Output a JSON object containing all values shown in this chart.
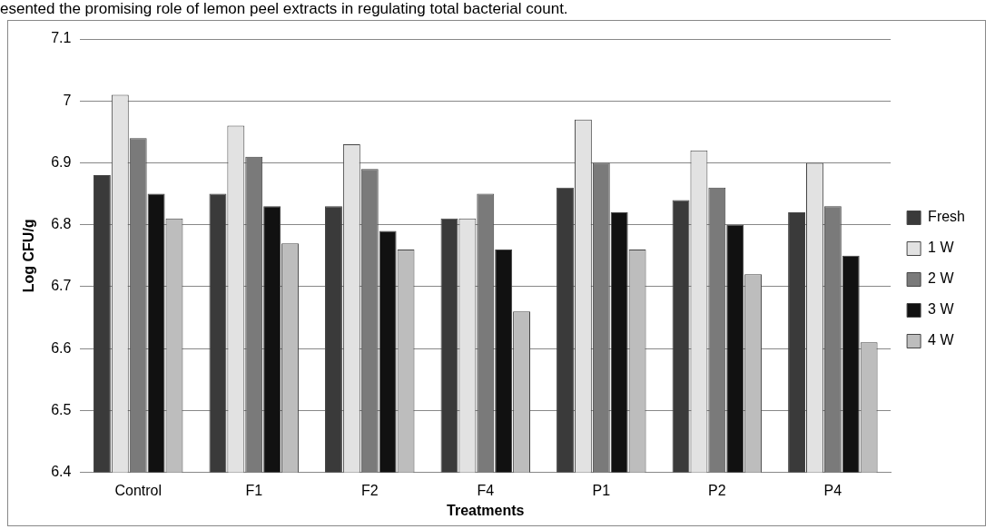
{
  "chart_data": {
    "type": "bar",
    "annotations": [
      "esented the promising role of lemon peel extracts in regulating total bacterial count."
    ],
    "xlabel": "Treatments",
    "ylabel": "Log CFU/g",
    "categories": [
      "Control",
      "F1",
      "F2",
      "F4",
      "P1",
      "P2",
      "P4"
    ],
    "series": [
      {
        "name": "Fresh",
        "color": "#3a3a3a",
        "values": [
          6.88,
          6.85,
          6.83,
          6.81,
          6.86,
          6.84,
          6.82
        ]
      },
      {
        "name": "1 W",
        "color": "#e2e2e2",
        "values": [
          7.01,
          6.96,
          6.93,
          6.81,
          6.97,
          6.92,
          6.9
        ]
      },
      {
        "name": "2 W",
        "color": "#7a7a7a",
        "values": [
          6.94,
          6.91,
          6.89,
          6.85,
          6.9,
          6.86,
          6.83
        ]
      },
      {
        "name": "3 W",
        "color": "#111111",
        "values": [
          6.85,
          6.83,
          6.79,
          6.76,
          6.82,
          6.8,
          6.75
        ]
      },
      {
        "name": "4 W",
        "color": "#bdbdbd",
        "values": [
          6.81,
          6.77,
          6.76,
          6.66,
          6.76,
          6.72,
          6.61
        ]
      }
    ],
    "ylim": [
      6.4,
      7.1
    ],
    "yticks": [
      6.4,
      6.5,
      6.6,
      6.7,
      6.8,
      6.9,
      {
        "value": 7,
        "label": "7"
      },
      7.1
    ],
    "grid": "y",
    "legend": "right"
  }
}
